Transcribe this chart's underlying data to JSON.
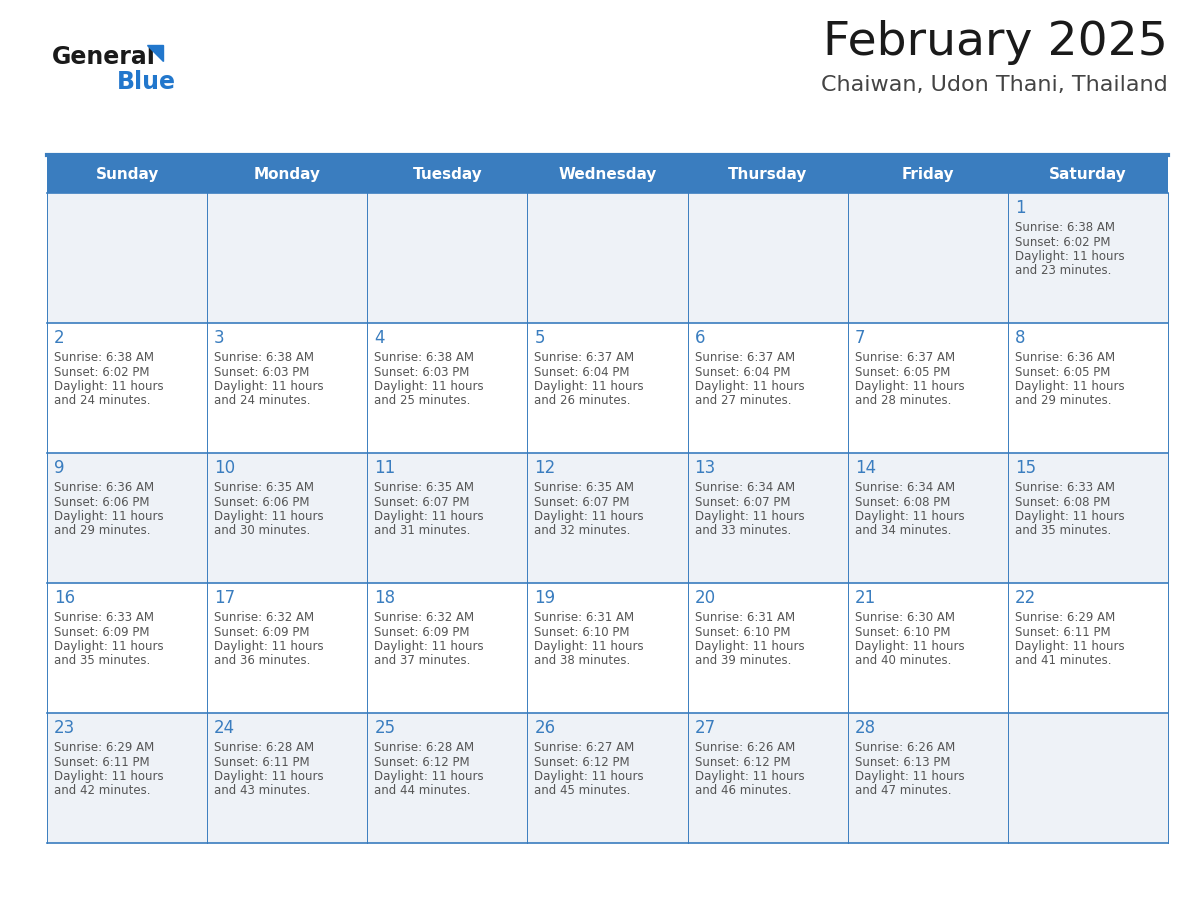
{
  "title": "February 2025",
  "subtitle": "Chaiwan, Udon Thani, Thailand",
  "days_of_week": [
    "Sunday",
    "Monday",
    "Tuesday",
    "Wednesday",
    "Thursday",
    "Friday",
    "Saturday"
  ],
  "header_bg": "#3a7dbf",
  "header_text": "#ffffff",
  "cell_bg_odd": "#eef2f7",
  "cell_bg_even": "#ffffff",
  "grid_line_color": "#3a7dbf",
  "day_number_color": "#3a7dbf",
  "text_color": "#555555",
  "title_color": "#1a1a1a",
  "subtitle_color": "#444444",
  "logo_general_color": "#1a1a1a",
  "logo_blue_color": "#2277cc",
  "calendar_data": [
    {
      "day": 1,
      "week": 0,
      "dow": 6,
      "sunrise": "6:38 AM",
      "sunset": "6:02 PM",
      "daylight_h": "11 hours",
      "daylight_m": "23 minutes"
    },
    {
      "day": 2,
      "week": 1,
      "dow": 0,
      "sunrise": "6:38 AM",
      "sunset": "6:02 PM",
      "daylight_h": "11 hours",
      "daylight_m": "24 minutes"
    },
    {
      "day": 3,
      "week": 1,
      "dow": 1,
      "sunrise": "6:38 AM",
      "sunset": "6:03 PM",
      "daylight_h": "11 hours",
      "daylight_m": "24 minutes"
    },
    {
      "day": 4,
      "week": 1,
      "dow": 2,
      "sunrise": "6:38 AM",
      "sunset": "6:03 PM",
      "daylight_h": "11 hours",
      "daylight_m": "25 minutes"
    },
    {
      "day": 5,
      "week": 1,
      "dow": 3,
      "sunrise": "6:37 AM",
      "sunset": "6:04 PM",
      "daylight_h": "11 hours",
      "daylight_m": "26 minutes"
    },
    {
      "day": 6,
      "week": 1,
      "dow": 4,
      "sunrise": "6:37 AM",
      "sunset": "6:04 PM",
      "daylight_h": "11 hours",
      "daylight_m": "27 minutes"
    },
    {
      "day": 7,
      "week": 1,
      "dow": 5,
      "sunrise": "6:37 AM",
      "sunset": "6:05 PM",
      "daylight_h": "11 hours",
      "daylight_m": "28 minutes"
    },
    {
      "day": 8,
      "week": 1,
      "dow": 6,
      "sunrise": "6:36 AM",
      "sunset": "6:05 PM",
      "daylight_h": "11 hours",
      "daylight_m": "29 minutes"
    },
    {
      "day": 9,
      "week": 2,
      "dow": 0,
      "sunrise": "6:36 AM",
      "sunset": "6:06 PM",
      "daylight_h": "11 hours",
      "daylight_m": "29 minutes"
    },
    {
      "day": 10,
      "week": 2,
      "dow": 1,
      "sunrise": "6:35 AM",
      "sunset": "6:06 PM",
      "daylight_h": "11 hours",
      "daylight_m": "30 minutes"
    },
    {
      "day": 11,
      "week": 2,
      "dow": 2,
      "sunrise": "6:35 AM",
      "sunset": "6:07 PM",
      "daylight_h": "11 hours",
      "daylight_m": "31 minutes"
    },
    {
      "day": 12,
      "week": 2,
      "dow": 3,
      "sunrise": "6:35 AM",
      "sunset": "6:07 PM",
      "daylight_h": "11 hours",
      "daylight_m": "32 minutes"
    },
    {
      "day": 13,
      "week": 2,
      "dow": 4,
      "sunrise": "6:34 AM",
      "sunset": "6:07 PM",
      "daylight_h": "11 hours",
      "daylight_m": "33 minutes"
    },
    {
      "day": 14,
      "week": 2,
      "dow": 5,
      "sunrise": "6:34 AM",
      "sunset": "6:08 PM",
      "daylight_h": "11 hours",
      "daylight_m": "34 minutes"
    },
    {
      "day": 15,
      "week": 2,
      "dow": 6,
      "sunrise": "6:33 AM",
      "sunset": "6:08 PM",
      "daylight_h": "11 hours",
      "daylight_m": "35 minutes"
    },
    {
      "day": 16,
      "week": 3,
      "dow": 0,
      "sunrise": "6:33 AM",
      "sunset": "6:09 PM",
      "daylight_h": "11 hours",
      "daylight_m": "35 minutes"
    },
    {
      "day": 17,
      "week": 3,
      "dow": 1,
      "sunrise": "6:32 AM",
      "sunset": "6:09 PM",
      "daylight_h": "11 hours",
      "daylight_m": "36 minutes"
    },
    {
      "day": 18,
      "week": 3,
      "dow": 2,
      "sunrise": "6:32 AM",
      "sunset": "6:09 PM",
      "daylight_h": "11 hours",
      "daylight_m": "37 minutes"
    },
    {
      "day": 19,
      "week": 3,
      "dow": 3,
      "sunrise": "6:31 AM",
      "sunset": "6:10 PM",
      "daylight_h": "11 hours",
      "daylight_m": "38 minutes"
    },
    {
      "day": 20,
      "week": 3,
      "dow": 4,
      "sunrise": "6:31 AM",
      "sunset": "6:10 PM",
      "daylight_h": "11 hours",
      "daylight_m": "39 minutes"
    },
    {
      "day": 21,
      "week": 3,
      "dow": 5,
      "sunrise": "6:30 AM",
      "sunset": "6:10 PM",
      "daylight_h": "11 hours",
      "daylight_m": "40 minutes"
    },
    {
      "day": 22,
      "week": 3,
      "dow": 6,
      "sunrise": "6:29 AM",
      "sunset": "6:11 PM",
      "daylight_h": "11 hours",
      "daylight_m": "41 minutes"
    },
    {
      "day": 23,
      "week": 4,
      "dow": 0,
      "sunrise": "6:29 AM",
      "sunset": "6:11 PM",
      "daylight_h": "11 hours",
      "daylight_m": "42 minutes"
    },
    {
      "day": 24,
      "week": 4,
      "dow": 1,
      "sunrise": "6:28 AM",
      "sunset": "6:11 PM",
      "daylight_h": "11 hours",
      "daylight_m": "43 minutes"
    },
    {
      "day": 25,
      "week": 4,
      "dow": 2,
      "sunrise": "6:28 AM",
      "sunset": "6:12 PM",
      "daylight_h": "11 hours",
      "daylight_m": "44 minutes"
    },
    {
      "day": 26,
      "week": 4,
      "dow": 3,
      "sunrise": "6:27 AM",
      "sunset": "6:12 PM",
      "daylight_h": "11 hours",
      "daylight_m": "45 minutes"
    },
    {
      "day": 27,
      "week": 4,
      "dow": 4,
      "sunrise": "6:26 AM",
      "sunset": "6:12 PM",
      "daylight_h": "11 hours",
      "daylight_m": "46 minutes"
    },
    {
      "day": 28,
      "week": 4,
      "dow": 5,
      "sunrise": "6:26 AM",
      "sunset": "6:13 PM",
      "daylight_h": "11 hours",
      "daylight_m": "47 minutes"
    }
  ],
  "num_weeks": 5,
  "fig_width": 11.88,
  "fig_height": 9.18
}
